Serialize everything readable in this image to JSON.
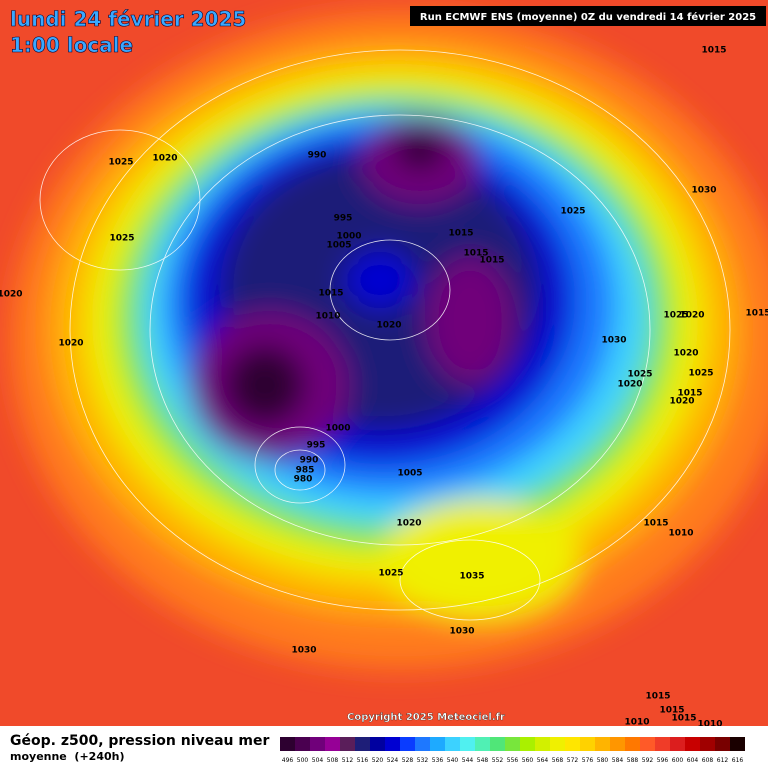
{
  "header": {
    "date": "lundi 24 février 2025",
    "time": "1:00 locale",
    "run": "Run ECMWF ENS (moyenne) 0Z du vendredi 14 février 2025"
  },
  "isobar_labels": [
    1015,
    990,
    1025,
    1020,
    1030,
    995,
    1025,
    1000,
    1005,
    1015,
    1015,
    1015,
    1025,
    1020,
    1015,
    1010,
    1020,
    1025,
    1020,
    1020,
    1030,
    1020,
    1025,
    1020,
    1025,
    1015,
    1020,
    1015,
    1000,
    995,
    990,
    985,
    980,
    1005,
    1015,
    1010,
    1020,
    1025,
    1035,
    1030,
    1030,
    1015,
    1015,
    1015,
    1010,
    1010
  ],
  "footer": {
    "title": "Géop. z500, pression niveau mer",
    "subtitle": "moyenne  (+240h)",
    "copyright": "Copyright 2025 Meteociel.fr"
  },
  "colorbar": {
    "values": [
      496,
      500,
      504,
      508,
      512,
      516,
      520,
      524,
      528,
      532,
      536,
      540,
      544,
      548,
      552,
      556,
      560,
      564,
      568,
      572,
      576,
      580,
      584,
      588,
      592,
      596,
      600,
      604,
      608,
      612,
      616
    ],
    "colors": [
      "#2d0030",
      "#4a0050",
      "#70007a",
      "#960096",
      "#5a1e5a",
      "#1e1e78",
      "#0000a0",
      "#0000d2",
      "#0a3cff",
      "#1e78ff",
      "#1eaaff",
      "#3cd2ff",
      "#50f0f0",
      "#50f0b4",
      "#50e678",
      "#78e63c",
      "#aaf000",
      "#d2f000",
      "#f0f000",
      "#ffe600",
      "#ffd200",
      "#ffb400",
      "#ff9600",
      "#ff7800",
      "#ff5a28",
      "#f03c28",
      "#dc1e1e",
      "#c80000",
      "#a00000",
      "#780000",
      "#1a0000"
    ]
  }
}
